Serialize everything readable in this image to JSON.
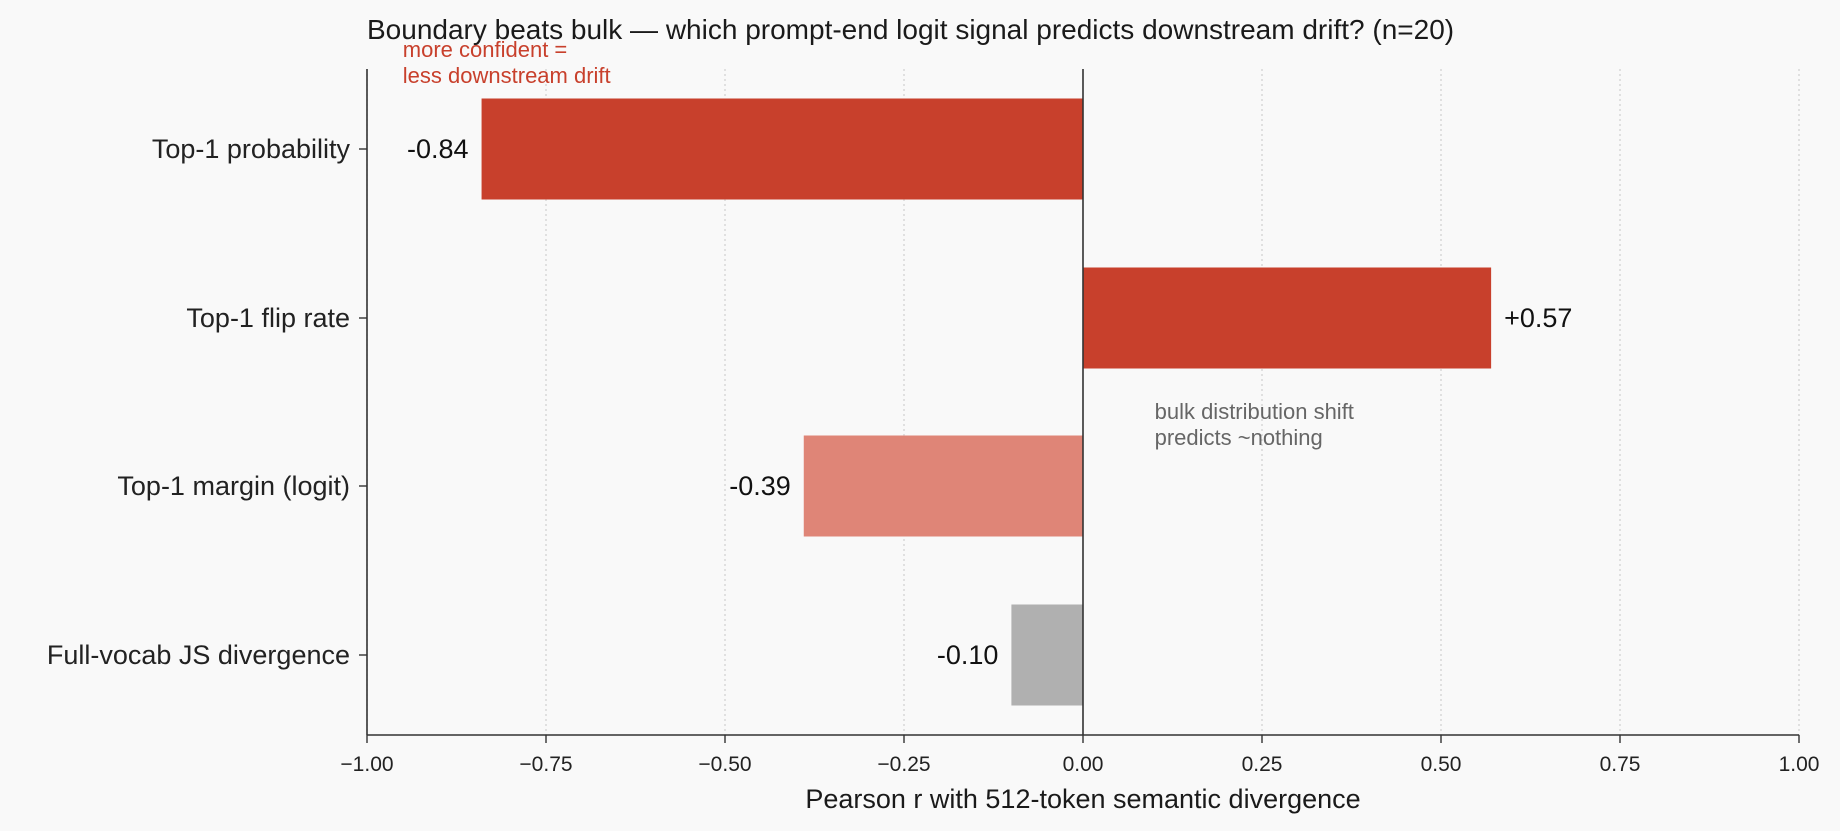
{
  "chart_data": {
    "type": "bar",
    "orientation": "horizontal",
    "title": "Boundary beats bulk  —  which prompt-end logit signal predicts downstream drift?  (n=20)",
    "xlabel": "Pearson r  with  512-token semantic divergence",
    "ylabel": "",
    "xlim": [
      -1.0,
      1.0
    ],
    "xticks": [
      -1.0,
      -0.75,
      -0.5,
      -0.25,
      0.0,
      0.25,
      0.5,
      0.75,
      1.0
    ],
    "xtick_labels": [
      "−1.00",
      "−0.75",
      "−0.50",
      "−0.25",
      "0.00",
      "0.25",
      "0.50",
      "0.75",
      "1.00"
    ],
    "grid": "vertical dotted",
    "categories": [
      "Top-1 probability",
      "Top-1 flip rate",
      "Top-1 margin (logit)",
      "Full-vocab JS divergence"
    ],
    "values": [
      -0.84,
      0.57,
      -0.39,
      -0.1
    ],
    "value_labels": [
      "-0.84",
      "+0.57",
      "-0.39",
      "-0.10"
    ],
    "bar_colors": [
      "#c8402c",
      "#c8402c",
      "#df8577",
      "#b0b0b0"
    ],
    "annotations": [
      {
        "lines": [
          "more confident =",
          "less downstream drift"
        ],
        "color": "#c8402c",
        "x": -0.95,
        "y_category": "Top-1 probability"
      },
      {
        "lines": [
          "bulk distribution shift",
          "predicts ~nothing"
        ],
        "color": "#666666",
        "x": 0.1,
        "y_category": "Top-1 margin (logit)"
      }
    ]
  }
}
